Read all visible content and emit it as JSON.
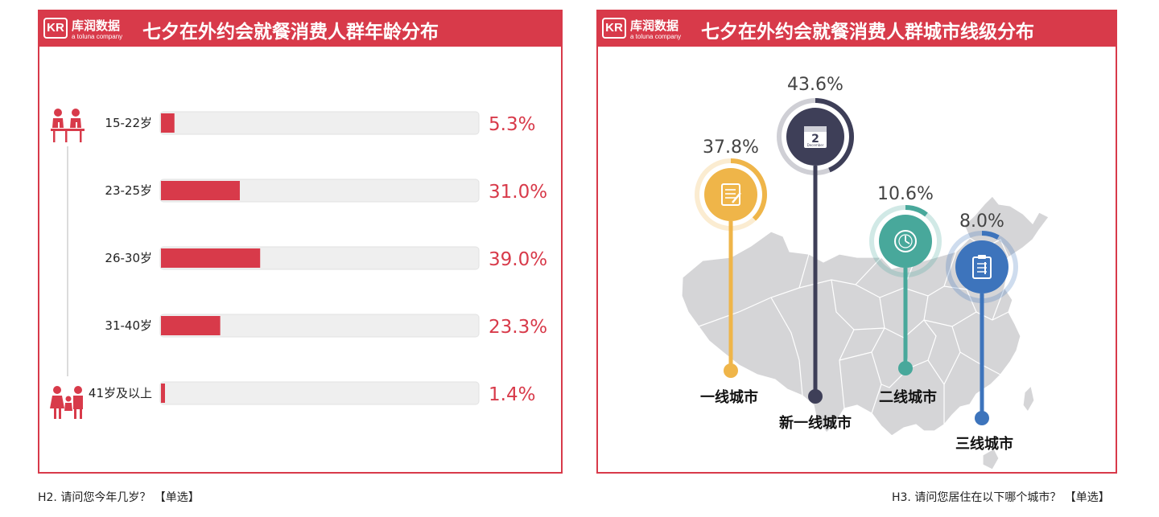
{
  "brand": {
    "name": "库润数据",
    "sub": "a toluna company",
    "mark": "KR",
    "color": "#d83a4a"
  },
  "left_panel": {
    "title": "七夕在外约会就餐消费人群年龄分布",
    "caption": "H2. 请问您今年几岁？ 【单选】"
  },
  "right_panel": {
    "title": "七夕在外约会就餐消费人群城市线级分布",
    "caption": "H3. 请问您居住在以下哪个城市？ 【单选】"
  },
  "chart_data": [
    {
      "type": "bar",
      "orientation": "horizontal",
      "title": "七夕在外约会就餐消费人群年龄分布",
      "categories": [
        "15-22岁",
        "23-25岁",
        "26-30岁",
        "31-40岁",
        "41岁及以上"
      ],
      "values": [
        5.3,
        31.0,
        39.0,
        23.3,
        1.4
      ],
      "value_labels": [
        "5.3%",
        "31.0%",
        "39.0%",
        "23.3%",
        "1.4%"
      ],
      "xlim": [
        0,
        100
      ],
      "unit": "%",
      "bar_color": "#d83a4a",
      "track_color": "#efefef",
      "icons": [
        "students-icon",
        "family-icon"
      ]
    },
    {
      "type": "bar",
      "style": "pin-markers-over-map",
      "title": "七夕在外约会就餐消费人群城市线级分布",
      "categories": [
        "一线城市",
        "新一线城市",
        "二线城市",
        "三线城市"
      ],
      "values": [
        37.8,
        43.6,
        10.6,
        8.0
      ],
      "value_labels": [
        "37.8%",
        "43.6%",
        "10.6%",
        "8.0%"
      ],
      "unit": "%",
      "colors": [
        "#efb549",
        "#3e3f58",
        "#48a89b",
        "#3d74bc"
      ],
      "icons": [
        "notepad-icon",
        "calendar-icon",
        "clock-icon",
        "clipboard-icon"
      ],
      "calendar_day": "2",
      "calendar_month": "December",
      "map_color": "#d5d5d7"
    }
  ]
}
